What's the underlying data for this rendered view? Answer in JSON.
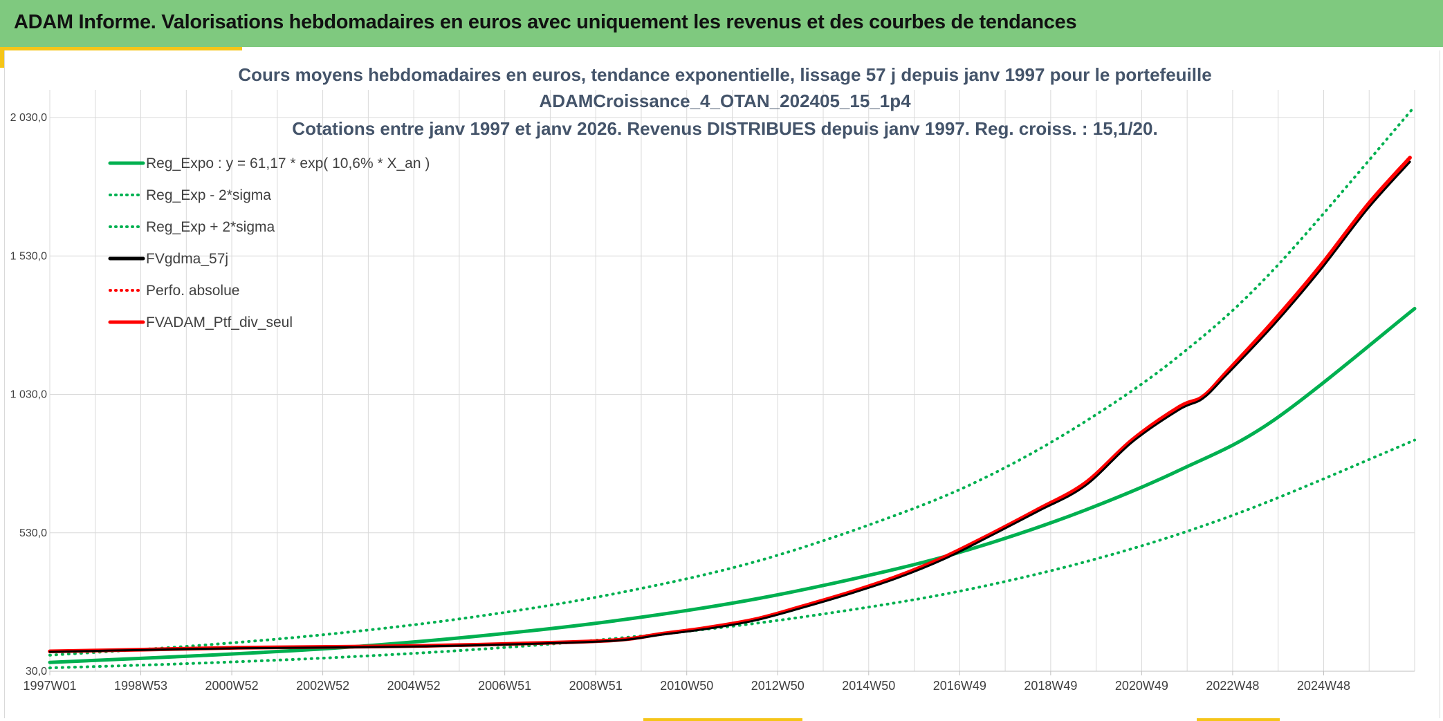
{
  "header": {
    "title": "ADAM Informe. Valorisations hebdomadaires en euros avec uniquement les revenus et des courbes de tendances"
  },
  "colors": {
    "header_bg": "#7fc97f",
    "accent": "#f5c518",
    "trend": "#00b050",
    "black": "#000000",
    "red": "#ff0000",
    "title_text": "#44546a"
  },
  "chart_data": {
    "type": "line",
    "title": "Cours moyens hebdomadaires en euros, tendance exponentielle, lissage 57 j depuis janv 1997 pour le portefeuille",
    "subtitle": "ADAMCroissance_4_OTAN_202405_15_1p4",
    "subtitle2": "Cotations entre janv 1997 et janv 2026. Revenus DISTRIBUES depuis janv 1997. Reg. croiss. : 15,1/20.",
    "x_unit": "year",
    "x_range": [
      1997.0,
      2026.0
    ],
    "x_ticks": [
      "1997W01",
      "1998W53",
      "2000W52",
      "2002W52",
      "2004W52",
      "2006W51",
      "2008W51",
      "2010W50",
      "2012W50",
      "2014W50",
      "2016W49",
      "2018W49",
      "2020W49",
      "2022W48",
      "2024W48"
    ],
    "y_ticks": [
      "30,0",
      "530,0",
      "1 030,0",
      "1 530,0",
      "2 030,0"
    ],
    "ylim": [
      30,
      2130
    ],
    "grid": true,
    "legend_position": "top-left",
    "series": [
      {
        "name": "Reg_Expo : y = 61,17 * exp( 10,6% *  X_an )",
        "style": "solid",
        "color": "#00b050",
        "x": [
          1997,
          2000,
          2003,
          2006,
          2009,
          2012,
          2015,
          2017,
          2019,
          2021,
          2023,
          2026
        ],
        "values": [
          62,
          85,
          113,
          155,
          212,
          291,
          400,
          494,
          612,
          756,
          936,
          1340
        ]
      },
      {
        "name": "Reg_Exp - 2*sigma",
        "style": "dotted",
        "color": "#00b050",
        "x": [
          1997,
          2000,
          2003,
          2006,
          2009,
          2012,
          2015,
          2017,
          2019,
          2021,
          2023,
          2026
        ],
        "values": [
          42,
          58,
          79,
          108,
          148,
          203,
          278,
          343,
          425,
          526,
          650,
          865
        ]
      },
      {
        "name": "Reg_Exp + 2*sigma",
        "style": "dotted",
        "color": "#00b050",
        "x": [
          1997,
          2000,
          2003,
          2006,
          2009,
          2012,
          2015,
          2017,
          2019,
          2021,
          2023,
          2026
        ],
        "values": [
          88,
          121,
          165,
          226,
          310,
          426,
          595,
          740,
          932,
          1170,
          1480,
          2070
        ]
      },
      {
        "name": "FVgdma_57j",
        "style": "solid",
        "color": "#000000",
        "x": [
          1997,
          1999,
          2001,
          2003,
          2005,
          2007,
          2009,
          2010,
          2011,
          2012,
          2013,
          2014,
          2015,
          2016,
          2017,
          2018,
          2019,
          2020,
          2021,
          2021.5,
          2022,
          2023,
          2024,
          2025,
          2025.9
        ],
        "values": [
          100,
          107,
          113,
          116,
          120,
          128,
          140,
          162,
          184,
          214,
          260,
          310,
          366,
          435,
          520,
          608,
          700,
          858,
          975,
          1015,
          1100,
          1280,
          1480,
          1700,
          1870
        ]
      },
      {
        "name": "Perfo. absolue",
        "style": "dotted",
        "color": "#ff0000",
        "x": [
          1997,
          1999,
          2001,
          2003,
          2005,
          2007,
          2009,
          2010,
          2011,
          2012,
          2013,
          2014,
          2015,
          2016,
          2017,
          2018,
          2019,
          2020,
          2021,
          2021.5,
          2022,
          2023,
          2024,
          2025,
          2025.9
        ],
        "values": [
          101,
          108,
          114,
          117,
          121,
          129,
          141,
          163,
          186,
          216,
          262,
          312,
          368,
          438,
          523,
          611,
          704,
          862,
          979,
          1019,
          1104,
          1285,
          1486,
          1706,
          1876
        ]
      },
      {
        "name": "FVADAM_Ptf_div_seul",
        "style": "solid",
        "color": "#ff0000",
        "x": [
          1997,
          1999,
          2001,
          2003,
          2005,
          2007,
          2009,
          2010,
          2011,
          2012,
          2013,
          2014,
          2015,
          2016,
          2017,
          2018,
          2019,
          2020,
          2021,
          2021.5,
          2022,
          2023,
          2024,
          2025,
          2025.9
        ],
        "values": [
          102,
          108,
          115,
          118,
          122,
          130,
          142,
          165,
          188,
          218,
          265,
          315,
          372,
          442,
          526,
          615,
          710,
          866,
          985,
          1022,
          1110,
          1295,
          1495,
          1715,
          1885
        ]
      }
    ]
  }
}
